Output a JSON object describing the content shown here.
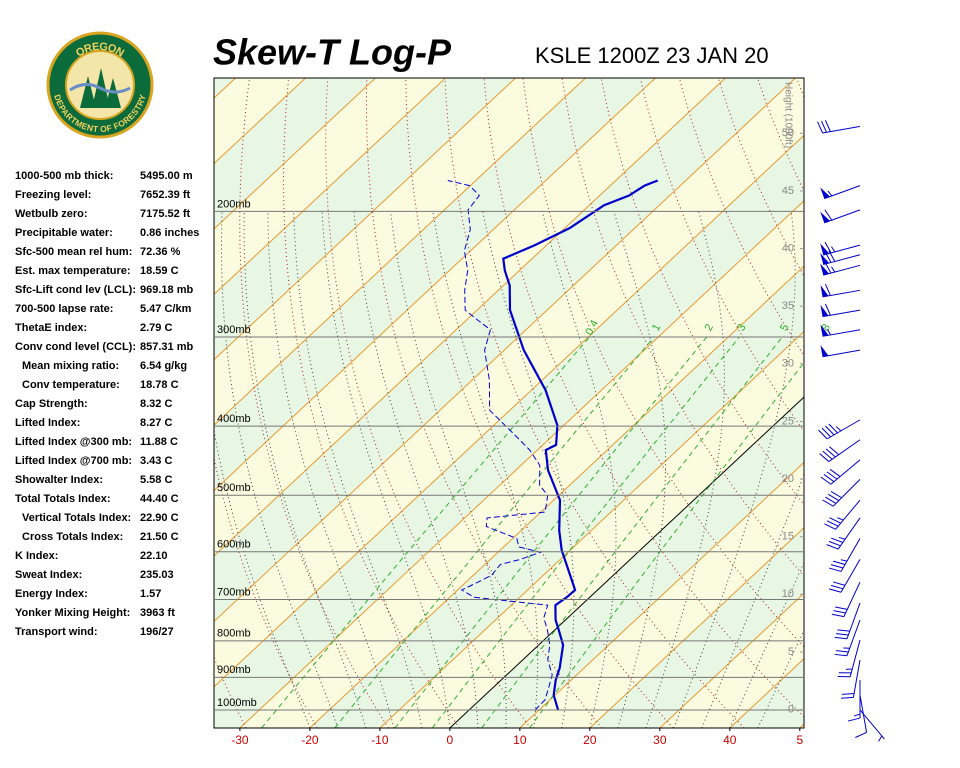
{
  "header": {
    "title": "Skew-T Log-P",
    "station": "KSLE 1200Z 23 JAN 20"
  },
  "logo": {
    "top": "OREGON",
    "bottom": "DEPARTMENT OF FORESTRY"
  },
  "indices": [
    {
      "label": "1000-500 mb thick:",
      "value": "5495.00 m"
    },
    {
      "label": "Freezing level:",
      "value": "7652.39 ft"
    },
    {
      "label": "Wetbulb zero:",
      "value": "7175.52 ft"
    },
    {
      "label": "Precipitable water:",
      "value": "0.86 inches"
    },
    {
      "label": "Sfc-500 mean rel hum:",
      "value": "72.36 %"
    },
    {
      "label": "Est. max temperature:",
      "value": "18.59 C"
    },
    {
      "label": "Sfc-Lift cond lev (LCL):",
      "value": "969.18 mb"
    },
    {
      "label": "700-500 lapse rate:",
      "value": "5.47 C/km"
    },
    {
      "label": "ThetaE index:",
      "value": "2.79 C"
    },
    {
      "label": "Conv cond level (CCL):",
      "value": "857.31 mb"
    },
    {
      "label": "Mean mixing ratio:",
      "value": "6.54 g/kg",
      "indent": true
    },
    {
      "label": "Conv temperature:",
      "value": "18.78 C",
      "indent": true
    },
    {
      "label": "Cap Strength:",
      "value": "8.32 C"
    },
    {
      "label": "Lifted Index:",
      "value": "8.27 C"
    },
    {
      "label": "Lifted Index @300 mb:",
      "value": "11.88 C"
    },
    {
      "label": "Lifted Index @700 mb:",
      "value": "3.43 C"
    },
    {
      "label": "Showalter Index:",
      "value": "5.58 C"
    },
    {
      "label": "Total Totals Index:",
      "value": "44.40 C"
    },
    {
      "label": "Vertical Totals Index:",
      "value": "22.90 C",
      "indent": true
    },
    {
      "label": "Cross Totals Index:",
      "value": "21.50 C",
      "indent": true
    },
    {
      "label": "K Index:",
      "value": "22.10"
    },
    {
      "label": "Sweat Index:",
      "value": "235.03"
    },
    {
      "label": "Energy Index:",
      "value": "1.57"
    },
    {
      "label": "Yonker Mixing Height:",
      "value": "3963 ft"
    },
    {
      "label": "Transport wind:",
      "value": "196/27"
    }
  ],
  "chart_data": {
    "type": "skewt",
    "xlim": [
      -33.7,
      50.6
    ],
    "xticks": [
      -30,
      -20,
      -10,
      0,
      10,
      20,
      30,
      40,
      {
        "value": 50,
        "label": "5"
      }
    ],
    "ylim": [
      1060,
      130
    ],
    "log_y": true,
    "yticks": [
      {
        "value": 1000,
        "label": "1000mb"
      },
      {
        "value": 900,
        "label": "900mb"
      },
      {
        "value": 800,
        "label": "800mb"
      },
      {
        "value": 700,
        "label": "700mb"
      },
      {
        "value": 600,
        "label": "600mb"
      },
      {
        "value": 500,
        "label": "500mb"
      },
      {
        "value": 400,
        "label": "400mb"
      },
      {
        "value": 300,
        "label": "300mb"
      },
      {
        "value": 200,
        "label": "200mb"
      }
    ],
    "height_axis": {
      "label": "Height (1000ft)",
      "lim": [
        -1.6,
        54.8
      ],
      "ticks": [
        0,
        5,
        10,
        15,
        20,
        25,
        30,
        35,
        40,
        45,
        50
      ]
    },
    "mixing_ratios": [
      0.4,
      1,
      2,
      3,
      5,
      8
    ],
    "series": [
      {
        "color": "#0000cc",
        "dashed": false,
        "pressure": [
          1000,
          953,
          908,
          873,
          811,
          778,
          748,
          713,
          695,
          679,
          647,
          597,
          560,
          508,
          461,
          432,
          425,
          399,
          356,
          313,
          275,
          254,
          242,
          233,
          223,
          211,
          196,
          190,
          184,
          181
        ],
        "values": [
          12.7,
          9.8,
          7.8,
          6.5,
          3.5,
          1.0,
          -1.4,
          -3.7,
          -3.3,
          -3.2,
          -6.2,
          -11.2,
          -14.6,
          -19.1,
          -25.4,
          -28.8,
          -28.1,
          -30.9,
          -38.0,
          -47.2,
          -55.3,
          -59.1,
          -62.1,
          -64.1,
          -61.7,
          -59.3,
          -57.9,
          -55.8,
          -55.1,
          -54.0
        ]
      },
      {
        "color": "#0000dd",
        "dashed": true,
        "pressure": [
          1000,
          968,
          937,
          893,
          851,
          811,
          773,
          743,
          713,
          695,
          679,
          662,
          647,
          625,
          615,
          601,
          591,
          575,
          553,
          538,
          528,
          500,
          484,
          454,
          432,
          405,
          380,
          345,
          313,
          293,
          284,
          275,
          258,
          242,
          227,
          212,
          199,
          190,
          184,
          181
        ],
        "values": [
          9.4,
          9.3,
          8.2,
          6.5,
          3.6,
          1.6,
          -1.0,
          -3.4,
          -4.8,
          -16.5,
          -19.4,
          -18.3,
          -17.4,
          -17.8,
          -15.7,
          -13.9,
          -17.8,
          -19.4,
          -25.6,
          -26.8,
          -19.4,
          -21.6,
          -24.3,
          -27.3,
          -31.1,
          -37.0,
          -42.9,
          -47.5,
          -52.8,
          -55.1,
          -58.4,
          -61.7,
          -64.8,
          -67.4,
          -70.9,
          -73.3,
          -76.6,
          -77.2,
          -80.1,
          -84.0
        ]
      }
    ],
    "winds": {
      "color": "#0000cc",
      "pressure": [
        152,
        184,
        199,
        223,
        230,
        238,
        258,
        275,
        293,
        313,
        392,
        418,
        446,
        475,
        508,
        538,
        575,
        615,
        662,
        708,
        748,
        798,
        851,
        908,
        953,
        1000
      ],
      "direction": [
        260,
        250,
        250,
        255,
        255,
        255,
        260,
        260,
        260,
        260,
        240,
        235,
        230,
        225,
        220,
        215,
        210,
        210,
        205,
        200,
        200,
        195,
        190,
        180,
        170,
        140
      ],
      "speed": [
        30,
        55,
        60,
        65,
        70,
        65,
        60,
        60,
        55,
        50,
        45,
        40,
        40,
        40,
        35,
        35,
        35,
        30,
        30,
        30,
        25,
        25,
        20,
        15,
        10,
        5
      ]
    }
  }
}
